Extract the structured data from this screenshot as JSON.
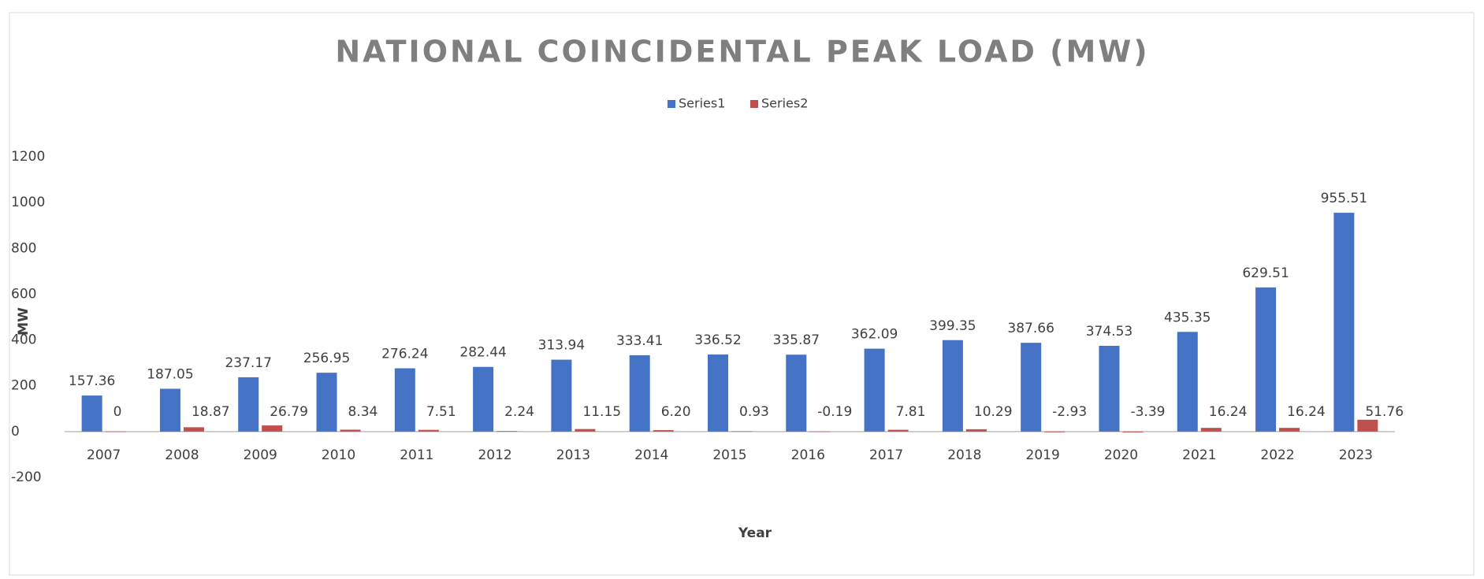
{
  "chart_data": {
    "type": "bar",
    "title": "NATIONAL COINCIDENTAL PEAK LOAD (MW)",
    "x_label": "Year",
    "y_label": "MW",
    "categories": [
      "2007",
      "2008",
      "2009",
      "2010",
      "2011",
      "2012",
      "2013",
      "2014",
      "2015",
      "2016",
      "2017",
      "2018",
      "2019",
      "2020",
      "2021",
      "2022",
      "2023"
    ],
    "series": [
      {
        "name": "Series1",
        "color": "#4472c4",
        "values": [
          157.36,
          187.05,
          237.17,
          256.95,
          276.24,
          282.44,
          313.94,
          333.41,
          336.52,
          335.87,
          362.09,
          399.35,
          387.66,
          374.53,
          435.35,
          629.51,
          955.51
        ]
      },
      {
        "name": "Series2",
        "color": "#c0504d",
        "values": [
          0,
          18.87,
          26.79,
          8.34,
          7.51,
          2.24,
          11.15,
          6.2,
          0.93,
          -0.19,
          7.81,
          10.29,
          -2.93,
          -3.39,
          16.24,
          16.24,
          51.76
        ],
        "value_labels": [
          "0",
          "18.87",
          "26.79",
          "8.34",
          "7.51",
          "2.24",
          "11.15",
          "6.20",
          "0.93",
          "-0.19",
          "7.81",
          "10.29",
          "-2.93",
          "-3.39",
          "16.24",
          "16.24",
          "51.76"
        ]
      }
    ],
    "ylim": [
      -200,
      1200
    ],
    "yticks": [
      -200,
      0,
      200,
      400,
      600,
      800,
      1000,
      1200
    ],
    "grid": false,
    "legend": "top"
  }
}
